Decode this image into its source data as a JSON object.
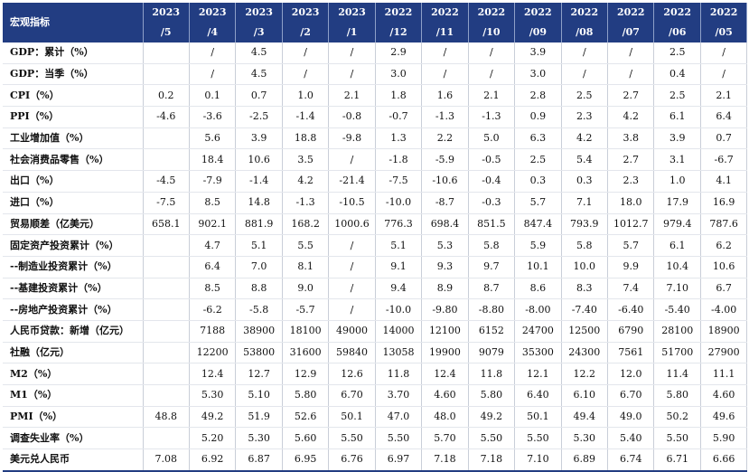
{
  "header": {
    "label": "宏观指标",
    "periods": [
      {
        "year": "2023",
        "month": "/5"
      },
      {
        "year": "2023",
        "month": "/4"
      },
      {
        "year": "2023",
        "month": "/3"
      },
      {
        "year": "2023",
        "month": "/2"
      },
      {
        "year": "2023",
        "month": "/1"
      },
      {
        "year": "2022",
        "month": "/12"
      },
      {
        "year": "2022",
        "month": "/11"
      },
      {
        "year": "2022",
        "month": "/10"
      },
      {
        "year": "2022",
        "month": "/09"
      },
      {
        "year": "2022",
        "month": "/08"
      },
      {
        "year": "2022",
        "month": "/07"
      },
      {
        "year": "2022",
        "month": "/06"
      },
      {
        "year": "2022",
        "month": "/05"
      }
    ]
  },
  "rows": [
    {
      "label": "GDP：累计（%）",
      "values": [
        "",
        "/",
        "4.5",
        "/",
        "/",
        "2.9",
        "/",
        "/",
        "3.9",
        "/",
        "/",
        "2.5",
        "/"
      ]
    },
    {
      "label": "GDP：当季（%）",
      "values": [
        "",
        "/",
        "4.5",
        "/",
        "/",
        "3.0",
        "/",
        "/",
        "3.0",
        "/",
        "/",
        "0.4",
        "/"
      ]
    },
    {
      "label": "CPI（%）",
      "values": [
        "0.2",
        "0.1",
        "0.7",
        "1.0",
        "2.1",
        "1.8",
        "1.6",
        "2.1",
        "2.8",
        "2.5",
        "2.7",
        "2.5",
        "2.1"
      ]
    },
    {
      "label": "PPI（%）",
      "values": [
        "-4.6",
        "-3.6",
        "-2.5",
        "-1.4",
        "-0.8",
        "-0.7",
        "-1.3",
        "-1.3",
        "0.9",
        "2.3",
        "4.2",
        "6.1",
        "6.4"
      ]
    },
    {
      "label": "工业增加值（%）",
      "values": [
        "",
        "5.6",
        "3.9",
        "18.8",
        "-9.8",
        "1.3",
        "2.2",
        "5.0",
        "6.3",
        "4.2",
        "3.8",
        "3.9",
        "0.7"
      ]
    },
    {
      "label": "社会消费品零售（%）",
      "values": [
        "",
        "18.4",
        "10.6",
        "3.5",
        "/",
        "-1.8",
        "-5.9",
        "-0.5",
        "2.5",
        "5.4",
        "2.7",
        "3.1",
        "-6.7"
      ]
    },
    {
      "label": "出口（%）",
      "values": [
        "-4.5",
        "-7.9",
        "-1.4",
        "4.2",
        "-21.4",
        "-7.5",
        "-10.6",
        "-0.4",
        "0.3",
        "0.3",
        "2.3",
        "1.0",
        "4.1"
      ]
    },
    {
      "label": "进口（%）",
      "values": [
        "-7.5",
        "8.5",
        "14.8",
        "-1.3",
        "-10.5",
        "-10.0",
        "-8.7",
        "-0.3",
        "5.7",
        "7.1",
        "18.0",
        "17.9",
        "16.9"
      ]
    },
    {
      "label": "贸易顺差（亿美元）",
      "values": [
        "658.1",
        "902.1",
        "881.9",
        "168.2",
        "1000.6",
        "776.3",
        "698.4",
        "851.5",
        "847.4",
        "793.9",
        "1012.7",
        "979.4",
        "787.6"
      ]
    },
    {
      "label": "固定资产投资累计（%）",
      "values": [
        "",
        "4.7",
        "5.1",
        "5.5",
        "/",
        "5.1",
        "5.3",
        "5.8",
        "5.9",
        "5.8",
        "5.7",
        "6.1",
        "6.2"
      ]
    },
    {
      "label": "--制造业投资累计（%）",
      "values": [
        "",
        "6.4",
        "7.0",
        "8.1",
        "/",
        "9.1",
        "9.3",
        "9.7",
        "10.1",
        "10.0",
        "9.9",
        "10.4",
        "10.6"
      ]
    },
    {
      "label": "--基建投资累计（%）",
      "values": [
        "",
        "8.5",
        "8.8",
        "9.0",
        "/",
        "9.4",
        "8.9",
        "8.7",
        "8.6",
        "8.3",
        "7.4",
        "7.10",
        "6.7"
      ]
    },
    {
      "label": "--房地产投资累计（%）",
      "values": [
        "",
        "-6.2",
        "-5.8",
        "-5.7",
        "/",
        "-10.0",
        "-9.80",
        "-8.80",
        "-8.00",
        "-7.40",
        "-6.40",
        "-5.40",
        "-4.00"
      ]
    },
    {
      "label": "人民币贷款：新增（亿元）",
      "values": [
        "",
        "7188",
        "38900",
        "18100",
        "49000",
        "14000",
        "12100",
        "6152",
        "24700",
        "12500",
        "6790",
        "28100",
        "18900"
      ]
    },
    {
      "label": "社融（亿元）",
      "values": [
        "",
        "12200",
        "53800",
        "31600",
        "59840",
        "13058",
        "19900",
        "9079",
        "35300",
        "24300",
        "7561",
        "51700",
        "27900"
      ]
    },
    {
      "label": "M2（%）",
      "values": [
        "",
        "12.4",
        "12.7",
        "12.9",
        "12.6",
        "11.8",
        "12.4",
        "11.8",
        "12.1",
        "12.2",
        "12.0",
        "11.4",
        "11.1"
      ]
    },
    {
      "label": "M1（%）",
      "values": [
        "",
        "5.30",
        "5.10",
        "5.80",
        "6.70",
        "3.70",
        "4.60",
        "5.80",
        "6.40",
        "6.10",
        "6.70",
        "5.80",
        "4.60"
      ]
    },
    {
      "label": "PMI（%）",
      "values": [
        "48.8",
        "49.2",
        "51.9",
        "52.6",
        "50.1",
        "47.0",
        "48.0",
        "49.2",
        "50.1",
        "49.4",
        "49.0",
        "50.2",
        "49.6"
      ]
    },
    {
      "label": "调查失业率（%）",
      "values": [
        "",
        "5.20",
        "5.30",
        "5.60",
        "5.50",
        "5.50",
        "5.70",
        "5.50",
        "5.50",
        "5.30",
        "5.40",
        "5.50",
        "5.90"
      ]
    },
    {
      "label": "美元兑人民币",
      "values": [
        "7.08",
        "6.92",
        "6.87",
        "6.95",
        "6.76",
        "6.97",
        "7.18",
        "7.18",
        "7.10",
        "6.89",
        "6.74",
        "6.71",
        "6.66"
      ]
    }
  ]
}
